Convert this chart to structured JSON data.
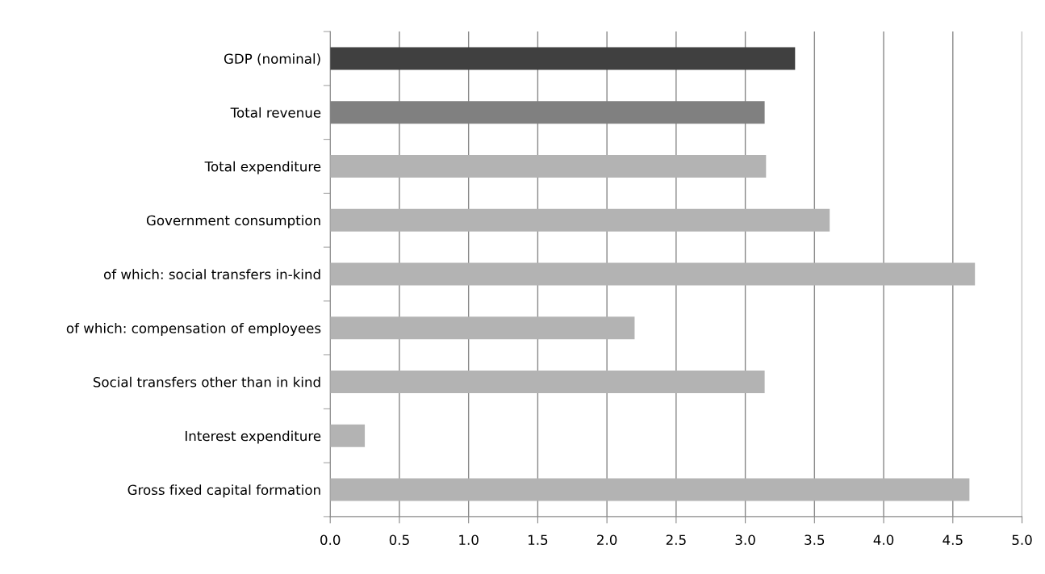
{
  "chart_data": {
    "type": "bar",
    "orientation": "horizontal",
    "categories": [
      "GDP (nominal)",
      "Total revenue",
      "Total expenditure",
      "Government consumption",
      "of which: social transfers in-kind",
      "of which: compensation of employees",
      "Social transfers other than in kind",
      "Interest expenditure",
      "Gross fixed capital formation"
    ],
    "values": [
      3.36,
      3.14,
      3.15,
      3.61,
      4.66,
      2.2,
      3.14,
      0.25,
      4.62
    ],
    "colors": [
      "#404040",
      "#808080",
      "#b3b3b3",
      "#b3b3b3",
      "#b3b3b3",
      "#b3b3b3",
      "#b3b3b3",
      "#b3b3b3",
      "#b3b3b3"
    ],
    "xlim": [
      0,
      5
    ],
    "xticks": [
      {
        "value": 0,
        "label": "0.0"
      },
      {
        "value": 0.5,
        "label": "0.5"
      },
      {
        "value": 1,
        "label": "1.0"
      },
      {
        "value": 1.5,
        "label": "1.5"
      },
      {
        "value": 2,
        "label": "2.0"
      },
      {
        "value": 2.5,
        "label": "2.5"
      },
      {
        "value": 3,
        "label": "3.0"
      },
      {
        "value": 3.5,
        "label": "3.5"
      },
      {
        "value": 4,
        "label": "4.0"
      },
      {
        "value": 4.5,
        "label": "4.5"
      },
      {
        "value": 5,
        "label": "5.0"
      }
    ],
    "grid": "x",
    "legend": false
  }
}
